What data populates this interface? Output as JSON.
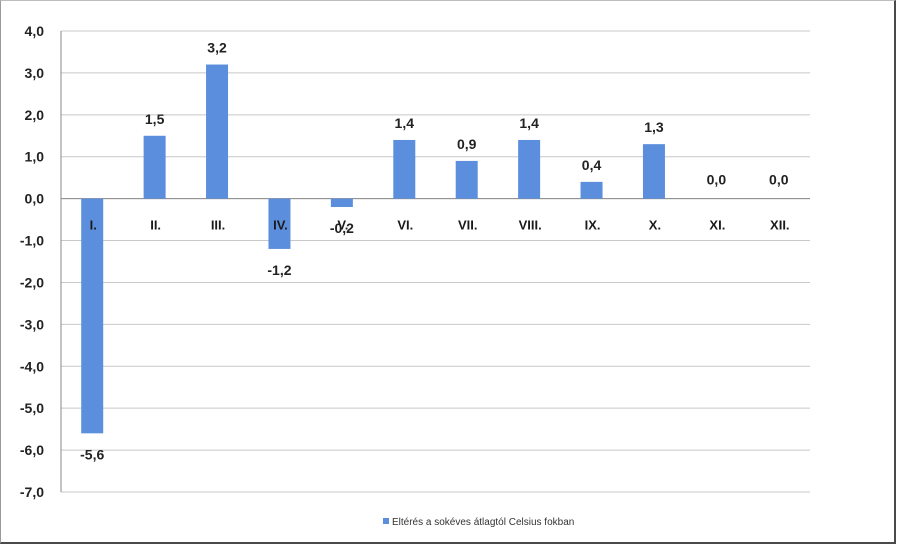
{
  "chart_data": {
    "type": "bar",
    "categories": [
      "I.",
      "II.",
      "III.",
      "IV.",
      "V.",
      "VI.",
      "VII.",
      "VIII.",
      "IX.",
      "X.",
      "XI.",
      "XII."
    ],
    "series": [
      {
        "name": "Eltérés a sokéves átlagtól Celsius fokban",
        "values": [
          -5.6,
          1.5,
          3.2,
          -1.2,
          -0.2,
          1.4,
          0.9,
          1.4,
          0.4,
          1.3,
          0.0,
          0.0
        ],
        "data_labels": [
          "-5,6",
          "1,5",
          "3,2",
          "-1,2",
          "-0,2",
          "1,4",
          "0,9",
          "1,4",
          "0,4",
          "1,3",
          "0,0",
          "0,0"
        ]
      }
    ],
    "yticks": [
      "4,0",
      "3,0",
      "2,0",
      "1,0",
      "0,0",
      "-1,0",
      "-2,0",
      "-3,0",
      "-4,0",
      "-5,0",
      "-6,0",
      "-7,0"
    ],
    "ylim": [
      -7,
      4
    ],
    "grid": true,
    "legend_position": "bottom-center",
    "bar_color": "#5b8fde",
    "title": "",
    "xlabel": "",
    "ylabel": ""
  }
}
